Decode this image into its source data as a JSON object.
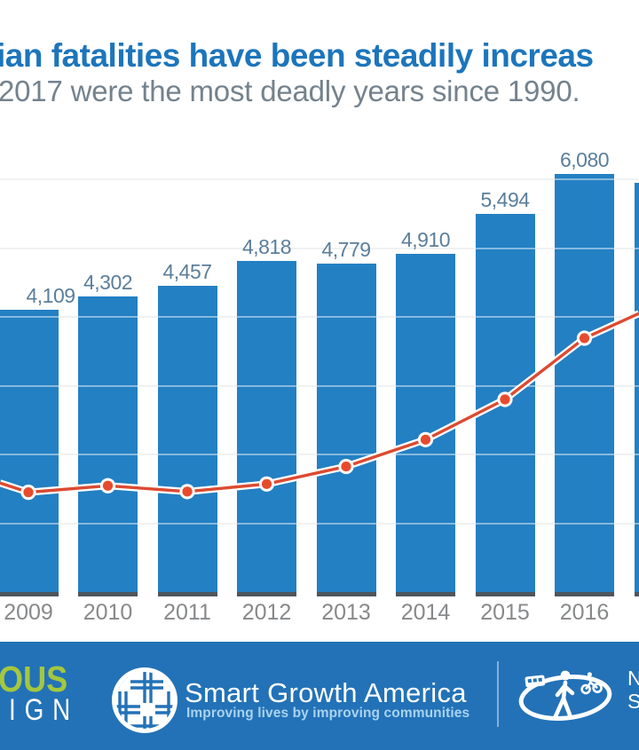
{
  "header": {
    "title_fragment": "ian fatalities have been steadily increas",
    "subtitle_fragment": "2017 were the most deadly years since 1990."
  },
  "chart_data": {
    "type": "bar",
    "title_fragment": "ian fatalities have been steadily increas",
    "subtitle_fragment": "2017 were the most deadly years since 1990.",
    "categories": [
      "2009",
      "2010",
      "2011",
      "2012",
      "2013",
      "2014",
      "2015",
      "2016"
    ],
    "series": [
      {
        "name": "annual fatalities (bars)",
        "values": [
          4109,
          4302,
          4457,
          4818,
          4779,
          4910,
          5494,
          6080
        ],
        "labels": [
          "4,109",
          "4,302",
          "4,457",
          "4,818",
          "4,779",
          "4,910",
          "5,494",
          "6,080"
        ]
      },
      {
        "name": "unlabeled trend line (red dots)",
        "values_left_axis_estimate": [
          1450,
          1545,
          1460,
          1570,
          1825,
          2215,
          2800,
          3690
        ],
        "edge_entry_value": 1585,
        "edge_exit_value": 4050
      }
    ],
    "partial_bar_right": {
      "value_estimate": 5950,
      "label_visible": false,
      "category_label_visible": false
    },
    "ylim": [
      0,
      6700
    ],
    "gridline_values": [
      1000,
      2000,
      3000,
      4000,
      5000,
      6000
    ],
    "y_axis_labels_visible": false,
    "legend": "none",
    "notes": "chart is cropped on left and right edges; leftmost bar and rightmost bar are partially cut off"
  },
  "footer": {
    "dbd_logo_line1_fragment": "OUS",
    "dbd_logo_line2_fragment": "IGN",
    "sga_name": "Smart Growth America",
    "sga_tagline": "Improving lives by improving communities",
    "ncsc_line1_fragment": "N",
    "ncsc_line2_fragment": "S"
  },
  "colors": {
    "bar": "#2380c3",
    "bar_bottom_cap": "#4e565e",
    "line": "#dc4a30",
    "dot": "#e74b2d",
    "dot_ring": "#ffffff",
    "title": "#1c75bc",
    "subtitle": "#74828d",
    "value_label": "#5b7e9a",
    "x_label": "#87898b",
    "gridline": "#e4e6e7",
    "footer_bg": "#2372b7",
    "dbd_green": "#a4c73f",
    "sga_tagline_color": "#a9d3f1"
  }
}
